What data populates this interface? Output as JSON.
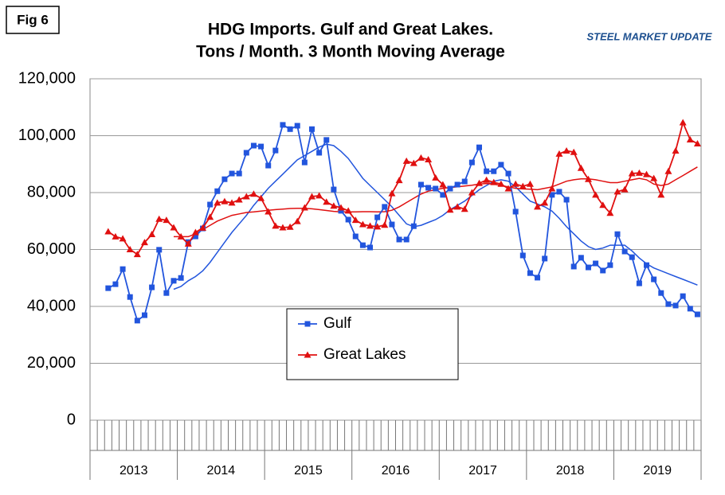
{
  "figure_label": "Fig 6",
  "logo": "STEEL MARKET UPDATE",
  "chart_data": {
    "type": "line",
    "title_lines": [
      "HDG Imports. Gulf and Great Lakes.",
      "Tons / Month. 3 Month Moving Average"
    ],
    "categories": [
      null,
      null,
      null,
      null,
      null,
      null,
      null,
      null,
      null,
      null,
      null,
      null,
      null,
      null,
      null,
      null,
      null,
      null,
      null,
      null,
      null,
      null,
      null,
      null,
      null,
      null,
      null,
      null,
      null,
      null,
      null,
      null,
      null,
      null,
      null,
      null,
      null,
      null,
      null,
      null,
      null,
      null,
      null,
      null,
      null,
      null,
      null,
      null,
      null,
      null,
      null,
      null,
      null,
      null,
      null,
      null,
      null,
      null,
      null,
      null,
      null,
      null,
      null,
      null,
      null,
      null,
      null,
      null,
      null,
      null,
      null,
      null,
      null,
      null,
      null,
      null,
      null,
      null,
      null,
      null,
      null,
      null,
      null,
      null
    ],
    "year_labels": [
      "2013",
      "2014",
      "2015",
      "2016",
      "2017",
      "2018",
      "2019"
    ],
    "ylim": [
      0,
      120000
    ],
    "yticks": [
      0,
      {
        "value": 20000,
        "label": "20,000"
      },
      {
        "value": 40000,
        "label": "40,000"
      },
      {
        "value": 60000,
        "label": "60,000"
      },
      {
        "value": 80000,
        "label": "80,000"
      },
      {
        "value": 100000,
        "label": "100,000"
      },
      {
        "value": 120000,
        "label": "120,000"
      }
    ],
    "grid": true,
    "legend_position": "lower center",
    "series": [
      {
        "name": "Gulf",
        "color": "#2255dd",
        "marker": "square",
        "values": [
          null,
          null,
          46400,
          47800,
          53100,
          43300,
          35000,
          36900,
          46700,
          59900,
          44700,
          49000,
          50000,
          62600,
          64600,
          67400,
          75800,
          80500,
          84700,
          86700,
          86700,
          94000,
          96500,
          96200,
          89500,
          94800,
          103800,
          102300,
          103500,
          90600,
          102300,
          94000,
          98500,
          81100,
          73600,
          70500,
          64600,
          61500,
          60700,
          71300,
          75000,
          68800,
          63500,
          63500,
          68200,
          82800,
          81700,
          81400,
          79200,
          81400,
          82800,
          83900,
          90600,
          95900,
          87500,
          87500,
          89800,
          86700,
          73300,
          57900,
          51700,
          50100,
          56800,
          79200,
          80300,
          77500,
          54000,
          57100,
          53700,
          55100,
          52600,
          54500,
          65400,
          59300,
          57300,
          48100,
          54500,
          49500,
          44700,
          40800,
          40300,
          43600,
          39200,
          37200
        ],
        "trend": [
          null,
          null,
          null,
          null,
          null,
          null,
          null,
          null,
          null,
          null,
          null,
          46000,
          47000,
          49000,
          50500,
          52500,
          55500,
          59000,
          62500,
          66000,
          69000,
          72000,
          75500,
          78500,
          81500,
          84000,
          86500,
          89000,
          91500,
          93000,
          94500,
          96000,
          97000,
          96500,
          94500,
          92000,
          88500,
          85000,
          82500,
          80000,
          77500,
          75000,
          72000,
          69000,
          68000,
          68500,
          69500,
          70500,
          72000,
          74000,
          75500,
          77000,
          79000,
          81000,
          82500,
          84000,
          84500,
          84000,
          82000,
          79500,
          77000,
          76000,
          75000,
          73500,
          71000,
          68000,
          65500,
          63000,
          61000,
          60000,
          60500,
          61500,
          61500,
          61500,
          59500,
          57000,
          55000,
          53500,
          52500,
          51500,
          50500,
          49500,
          48500,
          47500
        ]
      },
      {
        "name": "Great Lakes",
        "color": "#e01010",
        "marker": "triangle",
        "values": [
          null,
          null,
          66300,
          64500,
          63800,
          60000,
          58300,
          62500,
          65300,
          70700,
          70300,
          67700,
          64500,
          62000,
          66000,
          67600,
          71400,
          76400,
          76900,
          76400,
          77500,
          78600,
          79500,
          78000,
          73300,
          68300,
          67700,
          67900,
          69900,
          74700,
          78600,
          78900,
          76700,
          75300,
          74700,
          73600,
          70300,
          68800,
          68300,
          68000,
          68600,
          79700,
          84300,
          91100,
          90300,
          92200,
          91600,
          85200,
          82800,
          73900,
          75000,
          74200,
          80000,
          83300,
          84400,
          83600,
          83000,
          81400,
          83000,
          82200,
          83000,
          75000,
          76400,
          81400,
          93600,
          94700,
          94200,
          88600,
          84700,
          79200,
          75600,
          72800,
          80300,
          81100,
          86700,
          86900,
          86400,
          85000,
          79200,
          87500,
          94700,
          104600,
          98600,
          97200
        ],
        "trend": [
          null,
          null,
          null,
          null,
          null,
          null,
          null,
          null,
          null,
          null,
          null,
          64500,
          64500,
          64500,
          65500,
          67000,
          68500,
          70000,
          71000,
          72000,
          72500,
          73000,
          73200,
          73500,
          73800,
          74000,
          74200,
          74400,
          74500,
          74500,
          74300,
          74000,
          73700,
          73400,
          73200,
          73200,
          73200,
          73300,
          73300,
          73200,
          73300,
          73800,
          75000,
          76500,
          78000,
          79500,
          80500,
          81000,
          81500,
          81800,
          82000,
          82300,
          82600,
          83000,
          83200,
          83000,
          82500,
          82000,
          81500,
          81300,
          81200,
          81000,
          81500,
          82000,
          83000,
          84000,
          84500,
          84800,
          84800,
          84500,
          84000,
          83500,
          83500,
          84000,
          84500,
          85000,
          84500,
          83000,
          82500,
          83000,
          84500,
          86000,
          87500,
          89000
        ]
      }
    ]
  }
}
